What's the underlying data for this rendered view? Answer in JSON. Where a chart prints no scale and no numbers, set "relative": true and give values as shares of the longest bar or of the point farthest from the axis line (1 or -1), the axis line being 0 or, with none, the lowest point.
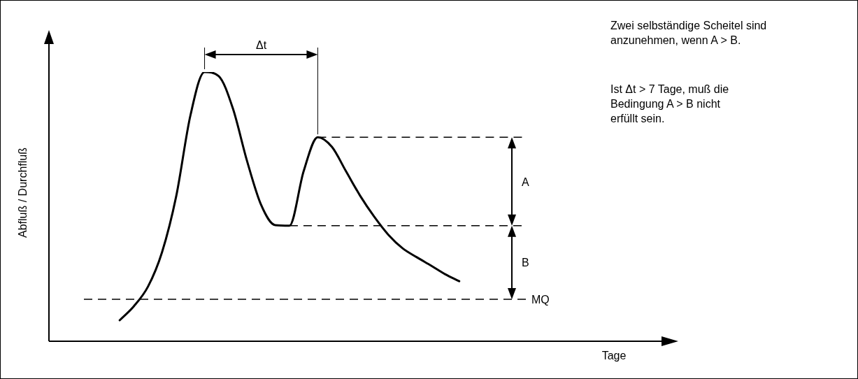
{
  "chart_data": {
    "type": "line",
    "relative": true,
    "xlabel": "Tage",
    "ylabel": "Abfluß / Durchfluß",
    "categories": [
      null,
      null,
      null,
      null,
      null,
      null,
      null,
      null,
      null,
      null,
      null,
      null,
      null,
      null,
      null,
      null,
      null,
      null,
      null,
      null,
      null,
      null,
      null,
      null,
      null,
      null,
      null,
      null,
      null,
      null,
      null,
      null,
      null,
      null,
      null,
      null,
      null,
      null,
      null,
      null,
      null,
      null,
      null,
      null
    ],
    "values": [
      null,
      null,
      null,
      null,
      null,
      0.078,
      0.13,
      0.203,
      0.332,
      0.54,
      0.839,
      1.0,
      0.985,
      0.865,
      0.67,
      0.506,
      0.431,
      0.429,
      0.631,
      0.758,
      0.722,
      0.631,
      0.54,
      0.462,
      0.395,
      0.345,
      0.312,
      0.281,
      0.249,
      0.223,
      null,
      null,
      null,
      null,
      null,
      null,
      null,
      null,
      null,
      null,
      null,
      null,
      null,
      null
    ],
    "color": "#000000",
    "marker": "none",
    "line_style": "solid",
    "tick_labels": false,
    "legend": false,
    "ref_lines": [
      {
        "axis": "y",
        "value": 0.156,
        "label": "MQ",
        "color": "#000000",
        "line_style": "dashed"
      },
      {
        "axis": "y",
        "value": 0.429,
        "label": null,
        "color": "#000000",
        "line_style": "dashed"
      },
      {
        "axis": "y",
        "value": 0.758,
        "label": null,
        "color": "#000000",
        "line_style": "dashed"
      }
    ],
    "annotations": [
      "Δt",
      "A",
      "B",
      "Zwei selbständige Scheitel sind anzunehmen, wenn A > B.",
      "Ist Δt > 7 Tage, muß die Bedingung A > B nicht erfüllt sein."
    ]
  }
}
